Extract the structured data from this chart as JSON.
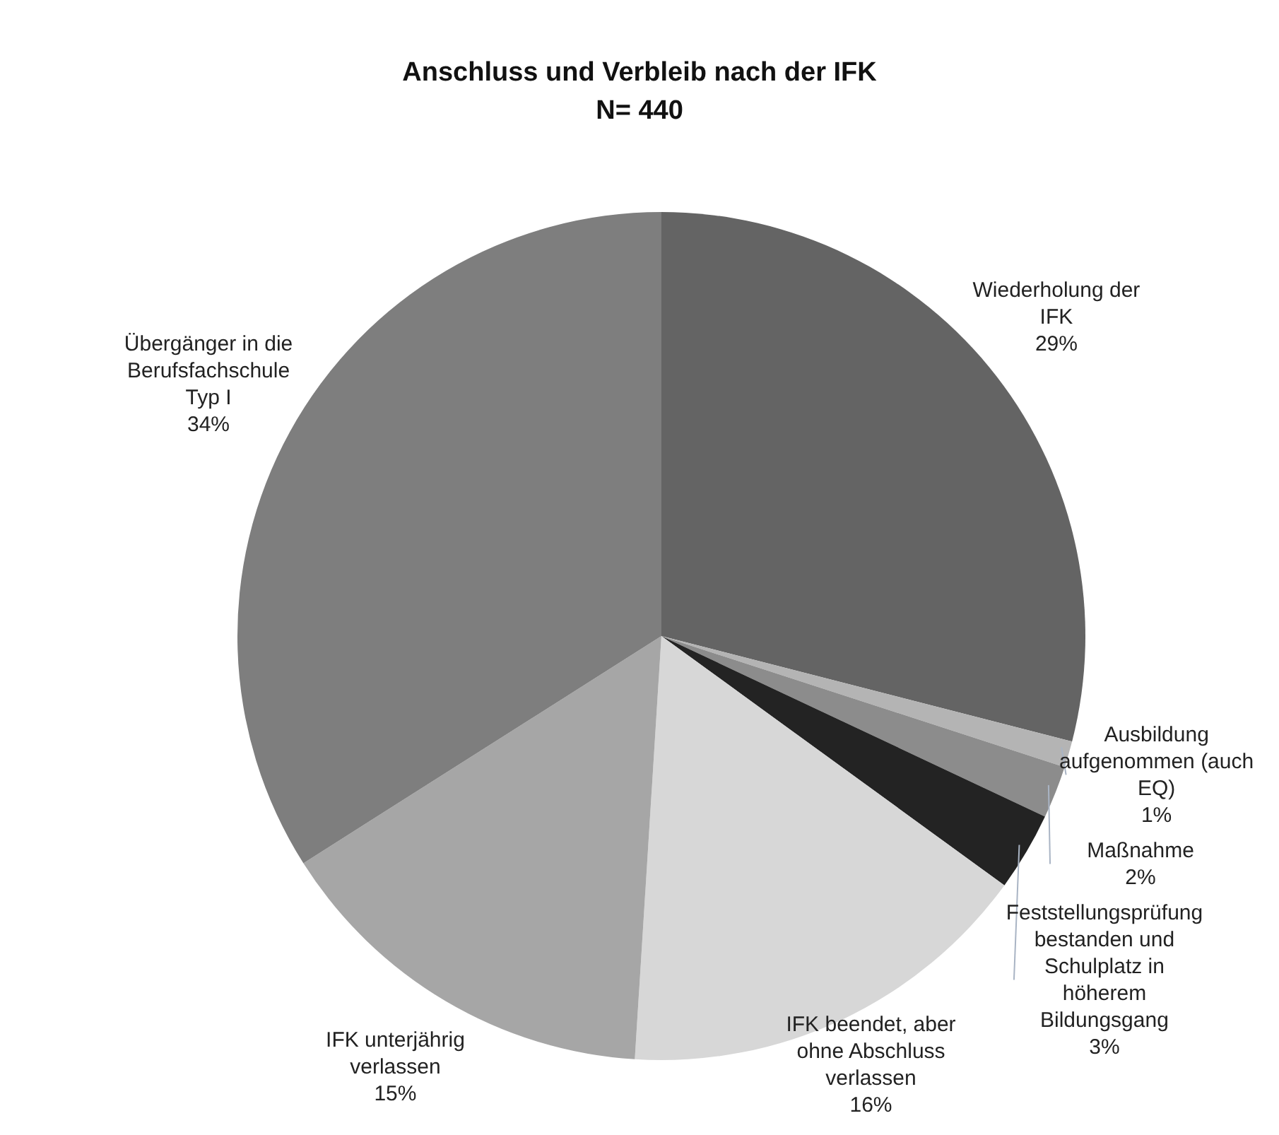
{
  "chart_data": {
    "type": "pie",
    "title": "Anschluss und Verbleib nach der IFK",
    "subtitle": "N= 440",
    "categories": [
      "Wiederholung der IFK",
      "Ausbildung aufgenommen (auch EQ)",
      "Maßnahme",
      "Feststellungsprüfung bestanden und Schulplatz in höherem Bildungsgang",
      "IFK beendet, aber ohne Abschluss verlassen",
      "IFK unterjährig verlassen",
      "Übergänger in die Berufsfachschule Typ I"
    ],
    "values": [
      29,
      1,
      2,
      3,
      16,
      15,
      34
    ],
    "value_labels": [
      "29%",
      "1%",
      "2%",
      "3%",
      "16%",
      "15%",
      "34%"
    ],
    "colors": [
      "#646464",
      "#b4b4b4",
      "#8c8c8c",
      "#232323",
      "#d7d7d7",
      "#a6a6a6",
      "#7e7e7e"
    ]
  }
}
